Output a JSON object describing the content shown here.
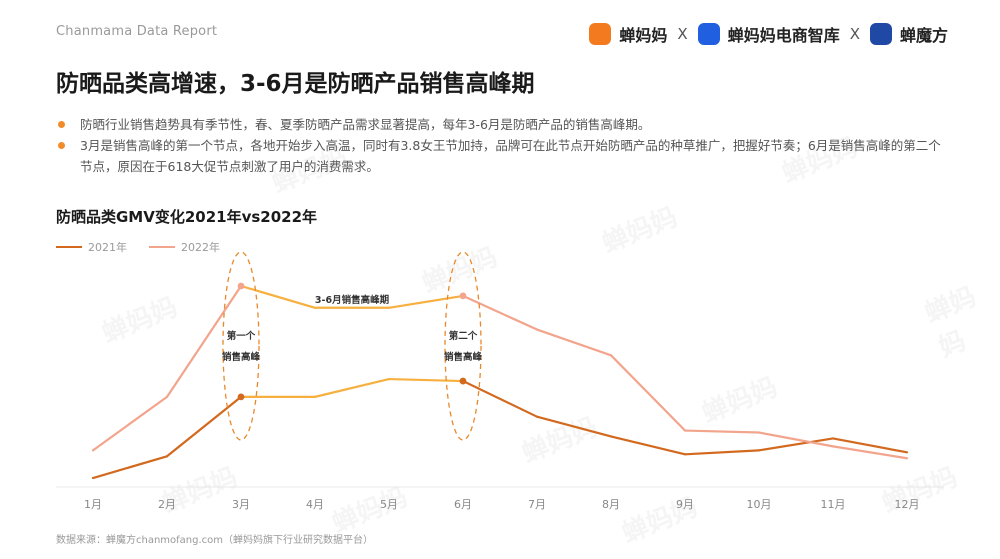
{
  "header": {
    "subtitle": "Chanmama Data Report",
    "logo1": "蝉妈妈",
    "logo2": "蝉妈妈电商智库",
    "logo3": "蝉魔方",
    "sep": "X"
  },
  "page_title": "防晒品类高增速，3-6月是防晒产品销售高峰期",
  "bullets": [
    "防晒行业销售趋势具有季节性，春、夏季防晒产品需求显著提高，每年3-6月是防晒产品的销售高峰期。",
    "3月是销售高峰的第一个节点，各地开始步入高温，同时有3.8女王节加持，品牌可在此节点开始防晒产品的种草推广，把握好节奏；6月是销售高峰的第二个节点，原因在于618大促节点刺激了用户的消费需求。"
  ],
  "footer": "数据来源：蝉魔方chanmofang.com（蝉妈妈旗下行业研究数据平台）",
  "watermark": "蝉妈妈",
  "chart_data": {
    "type": "line",
    "title": "防晒品类GMV变化2021年vs2022年",
    "categories": [
      "1月",
      "2月",
      "3月",
      "4月",
      "5月",
      "6月",
      "7月",
      "8月",
      "9月",
      "10月",
      "11月",
      "12月"
    ],
    "ylim": [
      0,
      100
    ],
    "series": [
      {
        "name": "2021年",
        "color": "#d2691e",
        "values": [
          3,
          14,
          44,
          44,
          53,
          52,
          34,
          24,
          15,
          17,
          23,
          16
        ]
      },
      {
        "name": "2022年",
        "color": "#f2a48c",
        "values": [
          17,
          44,
          100,
          89,
          89,
          95,
          78,
          65,
          27,
          26,
          19,
          13
        ]
      }
    ],
    "highlight_segment": {
      "label": "3-6月销售高峰期",
      "color": "#f7b040",
      "series_2022_from": 2,
      "series_2022_to": 5,
      "series_2021_from": 2,
      "series_2021_to": 5
    },
    "annotations": [
      {
        "month_index": 2,
        "line1": "第一个",
        "line2": "销售高峰"
      },
      {
        "month_index": 5,
        "line1": "第二个",
        "line2": "销售高峰"
      }
    ]
  }
}
